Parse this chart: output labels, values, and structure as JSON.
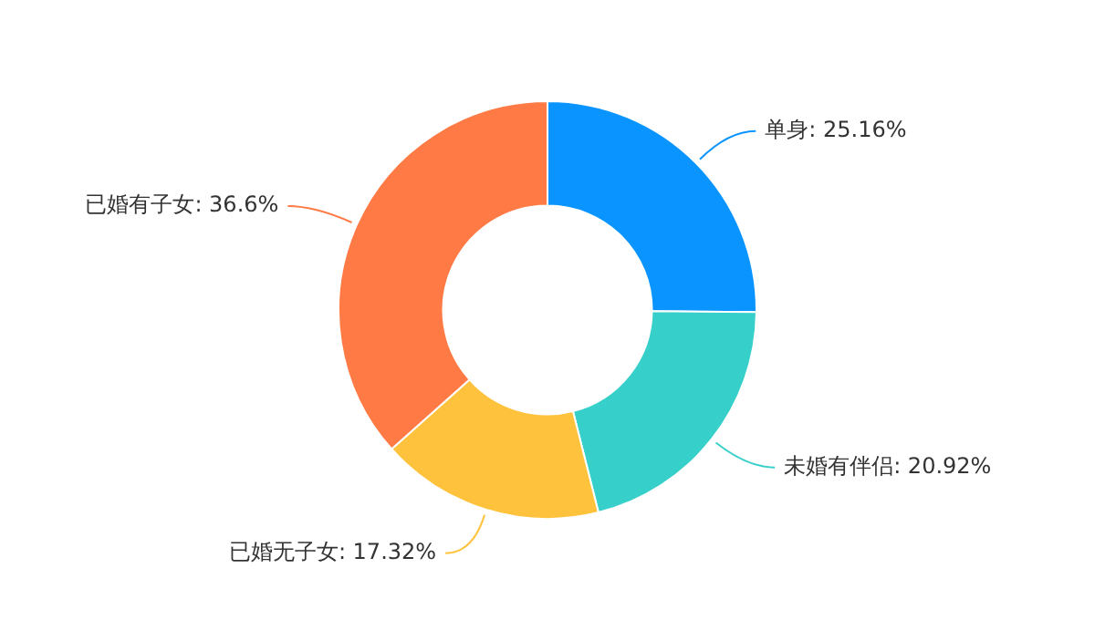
{
  "chart_data": {
    "type": "donut",
    "categories": [
      "单身",
      "未婚有伴侣",
      "已婚无子女",
      "已婚有子女"
    ],
    "values": [
      25.16,
      20.92,
      17.32,
      36.6
    ],
    "value_labels": [
      "25.16%",
      "20.92%",
      "17.32%",
      "36.6%"
    ],
    "colors": [
      "#0a94ff",
      "#36cfc9",
      "#ffc23d",
      "#ff7a45"
    ],
    "legend": false
  }
}
